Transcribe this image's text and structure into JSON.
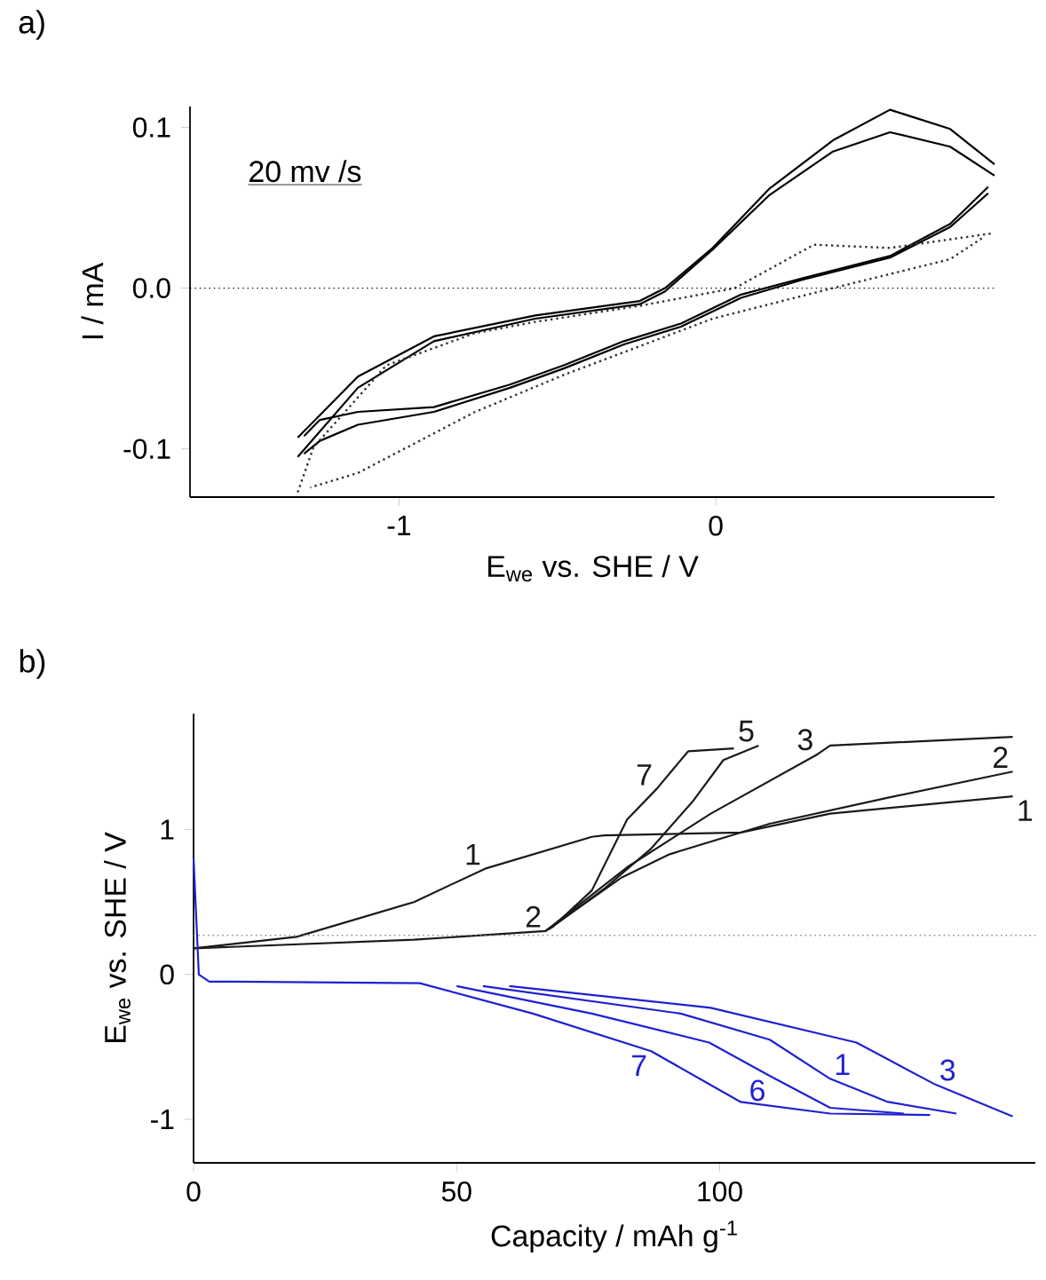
{
  "chart_data": [
    {
      "type": "line",
      "title": "a)",
      "xlabel": "E$_{we}$ vs. SHE / V",
      "ylabel": "I / mA",
      "xlim": [
        -1.66,
        0.88
      ],
      "ylim": [
        -0.13,
        0.113
      ],
      "xticks": [
        -1,
        0
      ],
      "yticks": [
        {
          "value": -0.1,
          "label": "-0.1"
        },
        {
          "value": 0,
          "label": "0.0"
        },
        {
          "value": 0.1,
          "label": "0.1"
        }
      ],
      "annotations": [
        "20 mv /s"
      ],
      "ref_lines": [
        {
          "axis": "y",
          "value": 0,
          "color": "#000000",
          "line_style": "dotted"
        }
      ],
      "series": [
        {
          "color": "#000000",
          "line_style": "solid",
          "x": [
            -1.32,
            -1.13,
            -0.89,
            -0.57,
            -0.24,
            -0.16,
            -0.01,
            0.17,
            0.37,
            0.55,
            0.74,
            0.88
          ],
          "values": [
            -0.093,
            -0.055,
            -0.03,
            -0.017,
            -0.008,
            0,
            0.025,
            0.062,
            0.092,
            0.111,
            0.099,
            0.077
          ]
        },
        {
          "color": "#000000",
          "line_style": "solid",
          "x": [
            0.86,
            0.74,
            0.55,
            0.27,
            0.08,
            -0.11,
            -0.29,
            -0.48,
            -0.65,
            -0.89,
            -1.13,
            -1.25,
            -1.3
          ],
          "values": [
            0.063,
            0.04,
            0.02,
            0.006,
            -0.004,
            -0.022,
            -0.033,
            -0.048,
            -0.06,
            -0.074,
            -0.077,
            -0.082,
            -0.092
          ]
        },
        {
          "color": "#000000",
          "line_style": "solid",
          "x": [
            -1.32,
            -1.13,
            -0.89,
            -0.57,
            -0.24,
            -0.16,
            -0.01,
            0.17,
            0.37,
            0.55,
            0.74,
            0.88
          ],
          "values": [
            -0.105,
            -0.062,
            -0.033,
            -0.019,
            -0.01,
            -0.002,
            0.024,
            0.058,
            0.085,
            0.097,
            0.088,
            0.07
          ]
        },
        {
          "color": "#000000",
          "line_style": "solid",
          "x": [
            0.86,
            0.74,
            0.55,
            0.27,
            0.08,
            -0.11,
            -0.29,
            -0.48,
            -0.65,
            -0.89,
            -1.13,
            -1.25,
            -1.3
          ],
          "values": [
            0.059,
            0.038,
            0.019,
            0.005,
            -0.006,
            -0.024,
            -0.035,
            -0.05,
            -0.062,
            -0.077,
            -0.085,
            -0.095,
            -0.103
          ]
        },
        {
          "color": "#333333",
          "line_style": "dotted",
          "x": [
            -1.32,
            -1.27,
            -1.04,
            -0.76,
            -0.57,
            -0.24,
            0.06,
            0.31,
            0.55,
            0.87
          ],
          "values": [
            -0.127,
            -0.099,
            -0.048,
            -0.028,
            -0.021,
            -0.011,
            0,
            0.027,
            0.025,
            0.034
          ]
        },
        {
          "color": "#333333",
          "line_style": "dotted",
          "x": [
            0.84,
            0.74,
            0.37,
            -0.01,
            -0.48,
            -0.76,
            -1.13,
            -1.28
          ],
          "values": [
            0.031,
            0.018,
            0,
            -0.019,
            -0.054,
            -0.077,
            -0.115,
            -0.124
          ]
        }
      ]
    },
    {
      "type": "line",
      "title": "b)",
      "xlabel": "Capacity / mAh g$^{-1}$",
      "ylabel": "E$_{we}$ vs. SHE / V",
      "xlim": [
        0,
        160
      ],
      "ylim": [
        -1.3,
        1.8
      ],
      "xticks": [
        0,
        50,
        100
      ],
      "yticks": [
        -1,
        0,
        1
      ],
      "ref_lines": [
        {
          "axis": "y",
          "value": 0.27,
          "color": "#808080",
          "line_style": "dotted"
        }
      ],
      "annotations": [
        {
          "text": "1",
          "x": 55.4,
          "y": 0.73
        },
        {
          "text": "2",
          "x": 66.9,
          "y": 0.3
        },
        {
          "text": "7",
          "x": 88,
          "y": 1.28
        },
        {
          "text": "5",
          "x": 107.4,
          "y": 1.58
        },
        {
          "text": "3",
          "x": 118.6,
          "y": 1.52
        },
        {
          "text": "2",
          "x": 155.7,
          "y": 1.4
        },
        {
          "text": "1",
          "x": 155.7,
          "y": 1.23
        },
        {
          "text": "7",
          "x": 87,
          "y": -0.53
        },
        {
          "text": "6",
          "x": 109.5,
          "y": -0.7
        },
        {
          "text": "1",
          "x": 121,
          "y": -0.72
        },
        {
          "text": "3",
          "x": 141,
          "y": -0.76
        }
      ],
      "series": [
        {
          "color": "#1a1a1a",
          "line_style": "solid",
          "x": [
            0,
            19.6,
            41.9,
            55.4,
            75.7,
            78,
            104,
            121,
            155.7
          ],
          "values": [
            0.18,
            0.26,
            0.5,
            0.73,
            0.95,
            0.96,
            0.98,
            1.11,
            1.23
          ]
        },
        {
          "color": "#1a1a1a",
          "line_style": "solid",
          "x": [
            0,
            41.9,
            66.9,
            81.4,
            90.5,
            109.5,
            132,
            155.7
          ],
          "values": [
            0.18,
            0.24,
            0.3,
            0.67,
            0.83,
            1.04,
            1.22,
            1.4
          ]
        },
        {
          "color": "#1a1a1a",
          "line_style": "solid",
          "x": [
            66.9,
            82.4,
            98.3,
            118.6,
            121,
            155.7
          ],
          "values": [
            0.3,
            0.74,
            1.11,
            1.52,
            1.58,
            1.64
          ]
        },
        {
          "color": "#1a1a1a",
          "line_style": "solid",
          "x": [
            67.5,
            78,
            87,
            95,
            100.7,
            107.4
          ],
          "values": [
            0.31,
            0.59,
            0.87,
            1.2,
            1.48,
            1.58
          ]
        },
        {
          "color": "#1a1a1a",
          "line_style": "solid",
          "x": [
            68,
            75.7,
            82.4,
            88,
            94,
            102.7
          ],
          "values": [
            0.32,
            0.58,
            1.07,
            1.28,
            1.54,
            1.56
          ]
        },
        {
          "color": "#2020d0",
          "line_style": "solid",
          "x": [
            0,
            1,
            3,
            8,
            43,
            64.5,
            87,
            104,
            121,
            140
          ],
          "values": [
            0.8,
            0,
            -0.05,
            -0.05,
            -0.06,
            -0.27,
            -0.53,
            -0.88,
            -0.96,
            -0.97
          ]
        },
        {
          "color": "#2020d0",
          "line_style": "solid",
          "x": [
            50,
            75.7,
            98,
            109.5,
            121,
            135
          ],
          "values": [
            -0.08,
            -0.27,
            -0.47,
            -0.7,
            -0.92,
            -0.96
          ]
        },
        {
          "color": "#2020d0",
          "line_style": "solid",
          "x": [
            55,
            92.6,
            109.5,
            121,
            132,
            145
          ],
          "values": [
            -0.08,
            -0.27,
            -0.45,
            -0.72,
            -0.88,
            -0.96
          ]
        },
        {
          "color": "#2020d0",
          "line_style": "solid",
          "x": [
            60,
            98.3,
            126,
            141,
            155.7
          ],
          "values": [
            -0.08,
            -0.23,
            -0.47,
            -0.76,
            -0.98
          ]
        }
      ]
    }
  ]
}
